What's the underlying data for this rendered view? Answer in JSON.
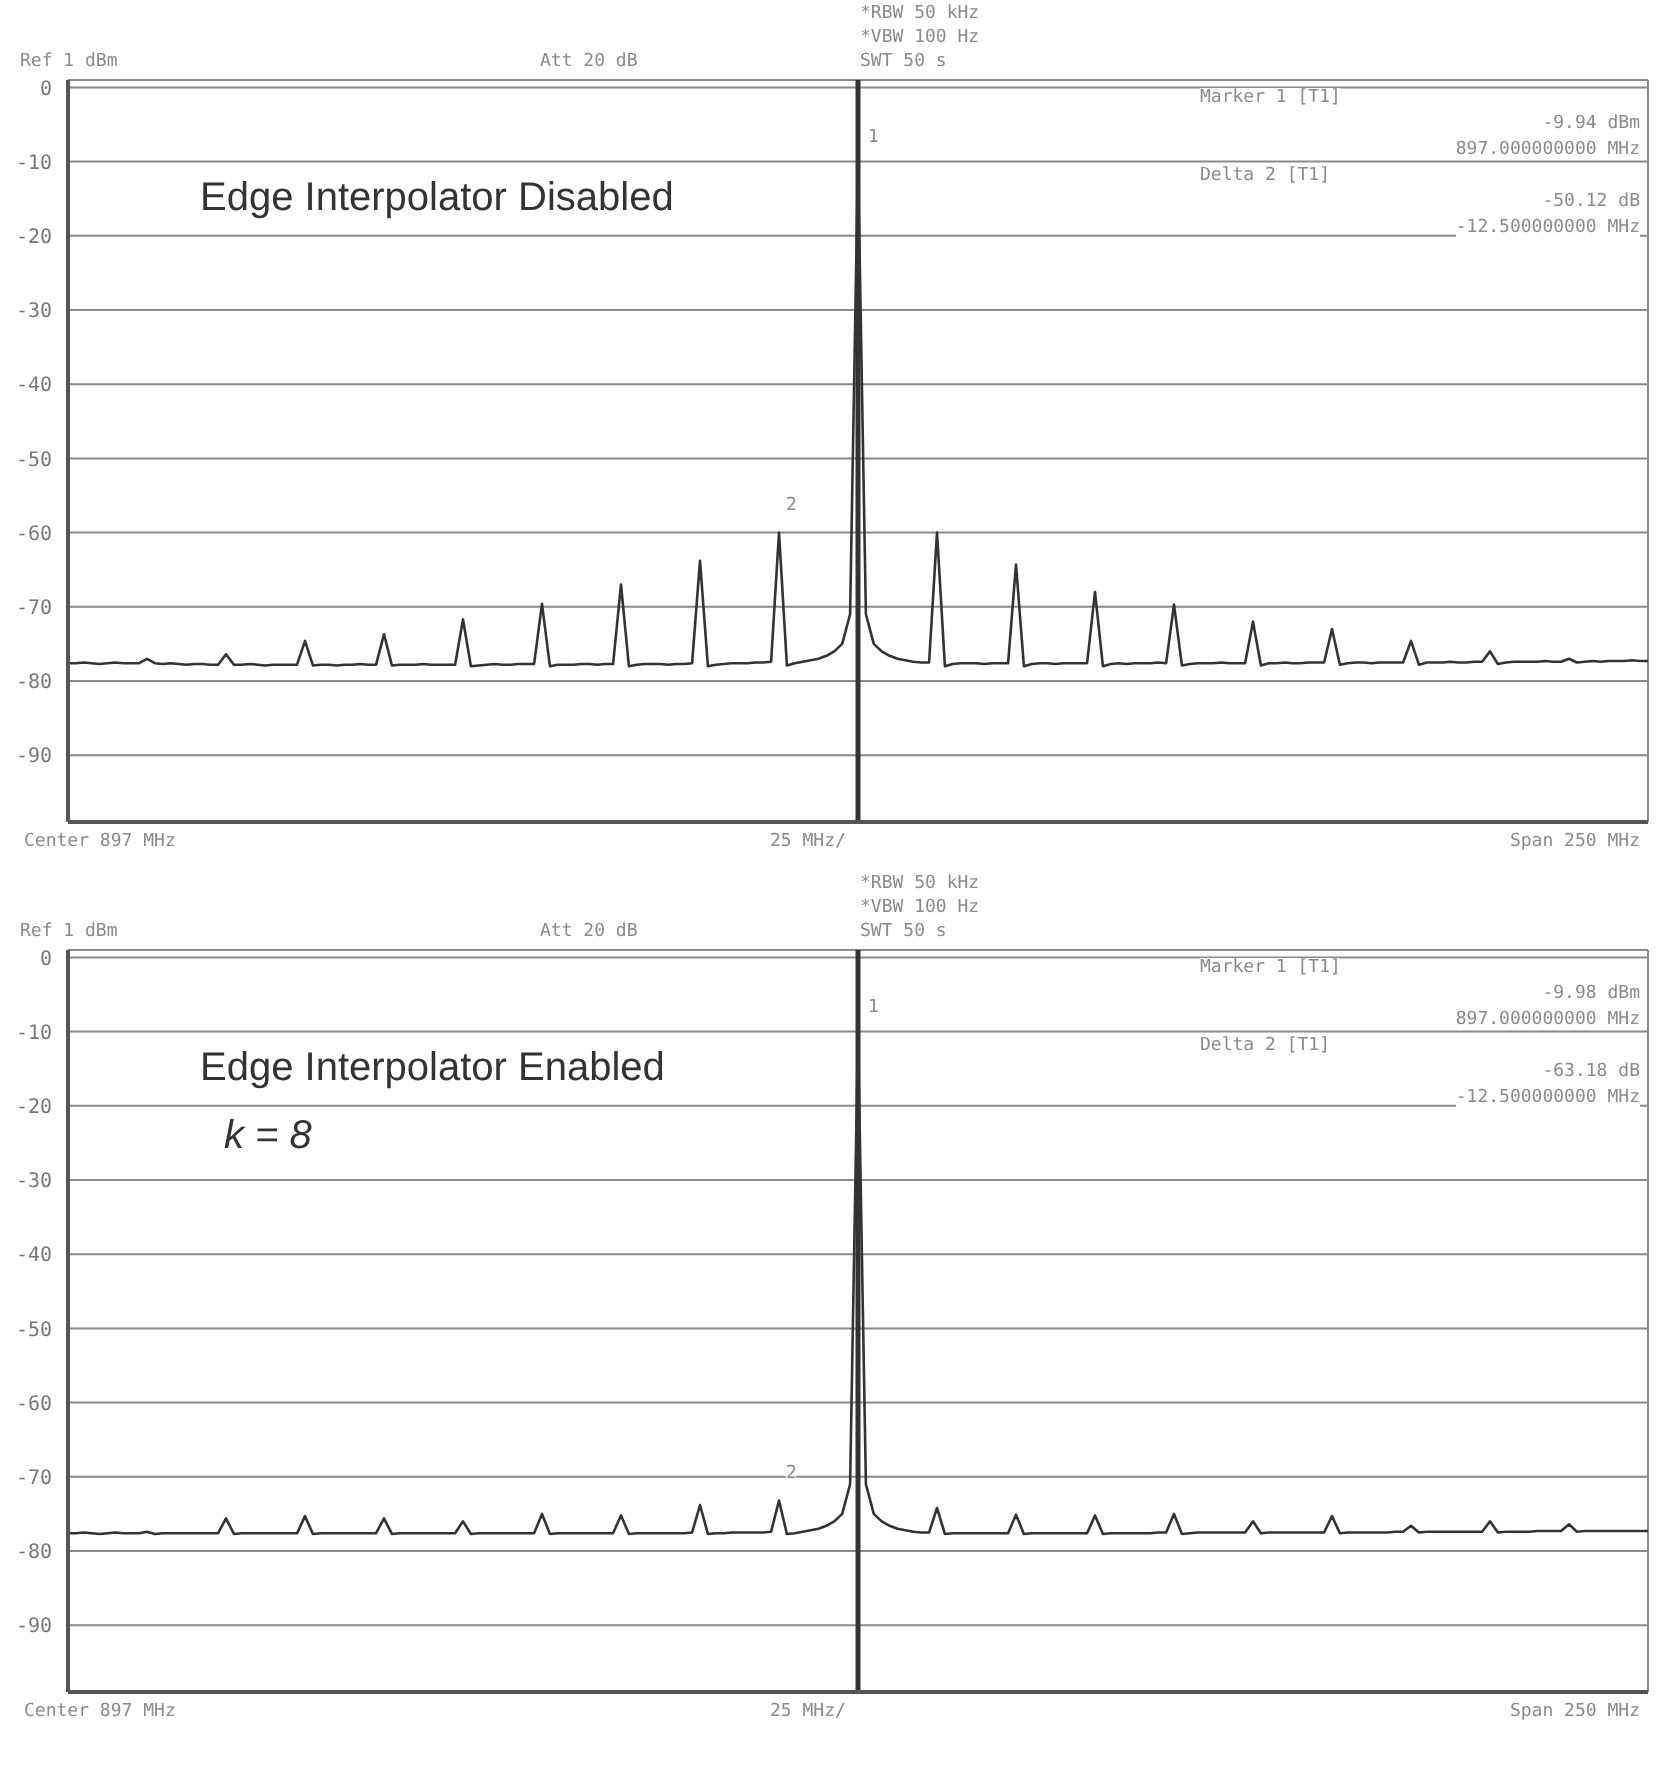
{
  "chart_data": [
    {
      "type": "line",
      "title": "Edge Interpolator Disabled",
      "annotations": [
        "Ref 1 dBm",
        "Att 20 dB",
        "*RBW 50 kHz",
        "*VBW 100 Hz",
        "SWT 50 s",
        "Marker 1 [T1]",
        "-9.94 dBm",
        "897.000000000 MHz",
        "Delta 2 [T1]",
        "-50.12 dB",
        "-12.500000000 MHz",
        "Center 897 MHz",
        "25 MHz/",
        "Span 250 MHz",
        "1",
        "2"
      ],
      "categories": [
        null,
        null,
        null,
        null,
        null,
        null,
        null,
        null,
        null,
        null,
        null,
        null,
        null,
        null,
        null,
        null,
        null,
        null,
        null,
        null,
        null,
        null,
        null,
        null,
        null,
        null,
        null,
        null,
        null,
        null,
        null,
        null,
        null,
        null,
        null,
        null,
        null,
        null,
        null,
        null,
        null,
        null,
        null,
        null,
        null,
        null,
        null,
        null,
        null,
        null,
        null,
        null,
        null,
        null,
        null,
        null,
        null,
        null,
        null,
        null,
        null,
        null,
        null,
        null,
        null,
        null,
        null,
        null,
        null,
        null,
        null,
        null,
        null,
        null,
        null,
        null,
        null,
        null,
        null,
        null,
        null,
        null,
        null,
        null,
        null,
        null,
        null,
        null,
        null,
        null,
        null,
        null,
        null,
        null,
        null,
        null,
        null,
        null,
        null,
        null,
        null,
        null,
        null,
        null,
        null,
        null,
        null,
        null,
        null,
        null,
        null,
        null,
        null,
        null,
        null,
        null,
        null,
        null,
        null,
        null,
        null,
        null,
        null,
        null,
        null,
        null,
        null,
        null,
        null,
        null,
        null,
        null,
        null,
        null,
        null,
        null,
        null,
        null,
        null,
        null,
        null,
        null,
        null,
        null,
        null,
        null,
        null,
        null,
        null,
        null,
        null,
        null,
        null,
        null,
        null,
        null,
        null,
        null,
        null,
        null,
        null,
        null,
        null,
        null,
        null,
        null,
        null,
        null,
        null,
        null,
        null,
        null,
        null,
        null,
        null,
        null,
        null,
        null,
        null,
        null,
        null,
        null,
        null,
        null,
        null,
        null,
        null,
        null,
        null,
        null,
        null,
        null,
        null,
        null,
        null,
        null,
        null,
        null,
        null,
        null,
        null
      ],
      "series": [
        {
          "color": "#333333",
          "values": [
            -77.6,
            -77.6,
            -77.5,
            -77.6,
            -77.7,
            -77.6,
            -77.5,
            -77.6,
            -77.6,
            -77.6,
            -77,
            -77.6,
            -77.7,
            -77.6,
            -77.7,
            -77.8,
            -77.7,
            -77.7,
            -77.8,
            -77.8,
            -76.4,
            -77.8,
            -77.8,
            -77.7,
            -77.8,
            -77.9,
            -77.8,
            -77.8,
            -77.8,
            -77.8,
            -74.6,
            -77.9,
            -77.8,
            -77.8,
            -77.9,
            -77.8,
            -77.8,
            -77.7,
            -77.8,
            -77.8,
            -73.7,
            -77.9,
            -77.8,
            -77.8,
            -77.8,
            -77.7,
            -77.8,
            -77.8,
            -77.8,
            -77.8,
            -71.7,
            -78,
            -77.9,
            -77.8,
            -77.7,
            -77.8,
            -77.8,
            -77.7,
            -77.7,
            -77.7,
            -69.6,
            -78,
            -77.8,
            -77.8,
            -77.8,
            -77.7,
            -77.7,
            -77.8,
            -77.7,
            -77.7,
            -67,
            -78,
            -77.8,
            -77.7,
            -77.7,
            -77.7,
            -77.8,
            -77.7,
            -77.7,
            -77.6,
            -63.8,
            -78,
            -77.8,
            -77.7,
            -77.6,
            -77.6,
            -77.6,
            -77.5,
            -77.5,
            -77.4,
            -60,
            -77.9,
            -77.6,
            -77.4,
            -77.2,
            -77,
            -76.6,
            -76,
            -75,
            -71,
            -9.9,
            -71,
            -75,
            -76,
            -76.6,
            -77,
            -77.2,
            -77.4,
            -77.5,
            -77.5,
            -60,
            -78,
            -77.7,
            -77.6,
            -77.6,
            -77.6,
            -77.7,
            -77.6,
            -77.6,
            -77.6,
            -64.3,
            -78,
            -77.7,
            -77.6,
            -77.6,
            -77.7,
            -77.6,
            -77.6,
            -77.6,
            -77.6,
            -68,
            -78,
            -77.7,
            -77.6,
            -77.7,
            -77.6,
            -77.6,
            -77.6,
            -77.5,
            -77.6,
            -69.7,
            -77.9,
            -77.7,
            -77.6,
            -77.6,
            -77.6,
            -77.5,
            -77.6,
            -77.6,
            -77.6,
            -72,
            -77.9,
            -77.6,
            -77.6,
            -77.5,
            -77.6,
            -77.6,
            -77.5,
            -77.5,
            -77.5,
            -73,
            -77.8,
            -77.6,
            -77.5,
            -77.5,
            -77.6,
            -77.5,
            -77.5,
            -77.5,
            -77.5,
            -74.6,
            -77.8,
            -77.5,
            -77.5,
            -77.5,
            -77.4,
            -77.5,
            -77.5,
            -77.4,
            -77.4,
            -76,
            -77.7,
            -77.5,
            -77.4,
            -77.4,
            -77.4,
            -77.4,
            -77.3,
            -77.4,
            -77.4,
            -77,
            -77.5,
            -77.4,
            -77.3,
            -77.4,
            -77.3,
            -77.3,
            -77.3,
            -77.2,
            -77.3,
            -77.3
          ]
        }
      ],
      "ylim": [
        -99,
        1
      ],
      "yticks": [
        0,
        -10,
        -20,
        -30,
        -40,
        -50,
        -60,
        -70,
        -80,
        -90
      ],
      "tick_labels": "y",
      "grid": true,
      "marker": "none",
      "line_style": "solid"
    },
    {
      "type": "line",
      "title": "Edge Interpolator Enabled",
      "subtitle": "k = 8",
      "annotations": [
        "Ref 1 dBm",
        "Att 20 dB",
        "*RBW 50 kHz",
        "*VBW 100 Hz",
        "SWT 50 s",
        "Marker 1 [T1]",
        "-9.98 dBm",
        "897.000000000 MHz",
        "Delta 2 [T1]",
        "-63.18 dB",
        "-12.500000000 MHz",
        "Center 897 MHz",
        "25 MHz/",
        "Span 250 MHz",
        "1",
        "2"
      ],
      "categories": [
        null,
        null,
        null,
        null,
        null,
        null,
        null,
        null,
        null,
        null,
        null,
        null,
        null,
        null,
        null,
        null,
        null,
        null,
        null,
        null,
        null,
        null,
        null,
        null,
        null,
        null,
        null,
        null,
        null,
        null,
        null,
        null,
        null,
        null,
        null,
        null,
        null,
        null,
        null,
        null,
        null,
        null,
        null,
        null,
        null,
        null,
        null,
        null,
        null,
        null,
        null,
        null,
        null,
        null,
        null,
        null,
        null,
        null,
        null,
        null,
        null,
        null,
        null,
        null,
        null,
        null,
        null,
        null,
        null,
        null,
        null,
        null,
        null,
        null,
        null,
        null,
        null,
        null,
        null,
        null,
        null,
        null,
        null,
        null,
        null,
        null,
        null,
        null,
        null,
        null,
        null,
        null,
        null,
        null,
        null,
        null,
        null,
        null,
        null,
        null,
        null,
        null,
        null,
        null,
        null,
        null,
        null,
        null,
        null,
        null,
        null,
        null,
        null,
        null,
        null,
        null,
        null,
        null,
        null,
        null,
        null,
        null,
        null,
        null,
        null,
        null,
        null,
        null,
        null,
        null,
        null,
        null,
        null,
        null,
        null,
        null,
        null,
        null,
        null,
        null,
        null,
        null,
        null,
        null,
        null,
        null,
        null,
        null,
        null,
        null,
        null,
        null,
        null,
        null,
        null,
        null,
        null,
        null,
        null,
        null,
        null,
        null,
        null,
        null,
        null,
        null,
        null,
        null,
        null,
        null,
        null,
        null,
        null,
        null,
        null,
        null,
        null,
        null,
        null,
        null,
        null,
        null,
        null,
        null,
        null,
        null,
        null,
        null,
        null,
        null,
        null,
        null,
        null,
        null,
        null,
        null,
        null,
        null,
        null,
        null,
        null
      ],
      "series": [
        {
          "color": "#333333",
          "values": [
            -77.6,
            -77.6,
            -77.5,
            -77.6,
            -77.7,
            -77.6,
            -77.5,
            -77.6,
            -77.6,
            -77.6,
            -77.4,
            -77.7,
            -77.6,
            -77.6,
            -77.6,
            -77.6,
            -77.6,
            -77.6,
            -77.6,
            -77.6,
            -75.6,
            -77.7,
            -77.6,
            -77.6,
            -77.6,
            -77.6,
            -77.6,
            -77.6,
            -77.6,
            -77.6,
            -75.3,
            -77.7,
            -77.6,
            -77.6,
            -77.6,
            -77.6,
            -77.6,
            -77.6,
            -77.6,
            -77.6,
            -75.6,
            -77.7,
            -77.6,
            -77.6,
            -77.6,
            -77.6,
            -77.6,
            -77.6,
            -77.6,
            -77.6,
            -76,
            -77.7,
            -77.6,
            -77.6,
            -77.6,
            -77.6,
            -77.6,
            -77.6,
            -77.6,
            -77.6,
            -75,
            -77.7,
            -77.6,
            -77.6,
            -77.6,
            -77.6,
            -77.6,
            -77.6,
            -77.6,
            -77.6,
            -75.2,
            -77.7,
            -77.6,
            -77.6,
            -77.6,
            -77.6,
            -77.6,
            -77.6,
            -77.6,
            -77.5,
            -73.8,
            -77.7,
            -77.6,
            -77.6,
            -77.5,
            -77.5,
            -77.5,
            -77.5,
            -77.5,
            -77.4,
            -73.2,
            -77.7,
            -77.6,
            -77.4,
            -77.2,
            -77,
            -76.6,
            -76,
            -75,
            -71,
            -10,
            -71,
            -75,
            -76,
            -76.6,
            -77,
            -77.2,
            -77.4,
            -77.5,
            -77.5,
            -74.2,
            -77.7,
            -77.6,
            -77.6,
            -77.6,
            -77.6,
            -77.6,
            -77.6,
            -77.6,
            -77.6,
            -75.1,
            -77.7,
            -77.6,
            -77.6,
            -77.6,
            -77.6,
            -77.6,
            -77.6,
            -77.6,
            -77.6,
            -75.2,
            -77.7,
            -77.6,
            -77.6,
            -77.6,
            -77.6,
            -77.6,
            -77.6,
            -77.5,
            -77.5,
            -75,
            -77.7,
            -77.6,
            -77.5,
            -77.5,
            -77.5,
            -77.5,
            -77.5,
            -77.5,
            -77.5,
            -76,
            -77.6,
            -77.5,
            -77.5,
            -77.5,
            -77.5,
            -77.5,
            -77.5,
            -77.5,
            -77.5,
            -75.3,
            -77.6,
            -77.5,
            -77.5,
            -77.5,
            -77.5,
            -77.5,
            -77.5,
            -77.4,
            -77.4,
            -76.6,
            -77.5,
            -77.4,
            -77.4,
            -77.4,
            -77.4,
            -77.4,
            -77.4,
            -77.4,
            -77.4,
            -76,
            -77.5,
            -77.4,
            -77.4,
            -77.4,
            -77.4,
            -77.3,
            -77.3,
            -77.3,
            -77.3,
            -76.4,
            -77.4,
            -77.3,
            -77.3,
            -77.3,
            -77.3,
            -77.3,
            -77.3,
            -77.3,
            -77.3,
            -77.3
          ]
        }
      ],
      "ylim": [
        -99,
        1
      ],
      "yticks": [
        0,
        -10,
        -20,
        -30,
        -40,
        -50,
        -60,
        -70,
        -80,
        -90
      ],
      "tick_labels": "y",
      "grid": true,
      "marker": "none",
      "line_style": "solid"
    }
  ]
}
